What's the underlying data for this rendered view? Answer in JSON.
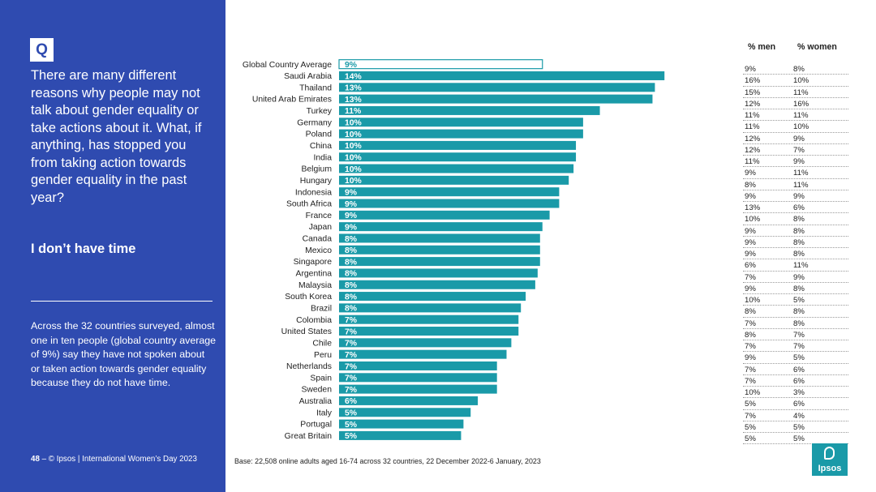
{
  "sidebar": {
    "q_label": "Q",
    "question": "There are many different reasons why people may not talk about gender equality or take actions about it.  What, if anything, has stopped you from taking action towards gender equality in the past year?",
    "answer": "I don’t have time",
    "summary": "Across the 32 countries surveyed, almost one in ten people (global country average of 9%) say they have not spoken about or taken action towards gender equality because they do not have time.",
    "page_number": "48",
    "footer_text": "– © Ipsos | International Women’s Day 2023"
  },
  "table": {
    "men_header": "% men",
    "women_header": "% women",
    "rows": [
      {
        "men": "9%",
        "women": "8%"
      },
      {
        "men": "16%",
        "women": "10%"
      },
      {
        "men": "15%",
        "women": "11%"
      },
      {
        "men": "12%",
        "women": "16%"
      },
      {
        "men": "11%",
        "women": "11%"
      },
      {
        "men": "11%",
        "women": "10%"
      },
      {
        "men": "12%",
        "women": "9%"
      },
      {
        "men": "12%",
        "women": "7%"
      },
      {
        "men": "11%",
        "women": "9%"
      },
      {
        "men": "9%",
        "women": "11%"
      },
      {
        "men": "8%",
        "women": "11%"
      },
      {
        "men": "9%",
        "women": "9%"
      },
      {
        "men": "13%",
        "women": "6%"
      },
      {
        "men": "10%",
        "women": "8%"
      },
      {
        "men": "9%",
        "women": "8%"
      },
      {
        "men": "9%",
        "women": "8%"
      },
      {
        "men": "9%",
        "women": "8%"
      },
      {
        "men": "6%",
        "women": "11%"
      },
      {
        "men": "7%",
        "women": "9%"
      },
      {
        "men": "9%",
        "women": "8%"
      },
      {
        "men": "10%",
        "women": "5%"
      },
      {
        "men": "8%",
        "women": "8%"
      },
      {
        "men": "7%",
        "women": "8%"
      },
      {
        "men": "8%",
        "women": "7%"
      },
      {
        "men": "7%",
        "women": "7%"
      },
      {
        "men": "9%",
        "women": "5%"
      },
      {
        "men": "7%",
        "women": "6%"
      },
      {
        "men": "7%",
        "women": "6%"
      },
      {
        "men": "10%",
        "women": "3%"
      },
      {
        "men": "5%",
        "women": "6%"
      },
      {
        "men": "7%",
        "women": "4%"
      },
      {
        "men": "5%",
        "women": "5%"
      },
      {
        "men": "5%",
        "women": "5%"
      }
    ]
  },
  "base_note": "Base: 22,508 online adults aged 16-74 across 32 countries, 22 December 2022-6 January, 2023",
  "logo_text": "Ipsos",
  "colors": {
    "panel": "#2f4bb0",
    "bar": "#1a9aa8",
    "average_bar_fill": "#ffffff"
  },
  "chart_data": {
    "type": "bar",
    "orientation": "horizontal",
    "title": "",
    "xlabel": "",
    "ylabel": "",
    "categories": [
      "Global Country Average",
      "Saudi Arabia",
      "Thailand",
      "United Arab Emirates",
      "Turkey",
      "Germany",
      "Poland",
      "China",
      "India",
      "Belgium",
      "Hungary",
      "Indonesia",
      "South Africa",
      "France",
      "Japan",
      "Canada",
      "Mexico",
      "Singapore",
      "Argentina",
      "Malaysia",
      "South Korea",
      "Brazil",
      "Colombia",
      "United States",
      "Chile",
      "Peru",
      "Netherlands",
      "Spain",
      "Sweden",
      "Australia",
      "Italy",
      "Portugal",
      "Great Britain"
    ],
    "values": [
      8.5,
      13.6,
      13.2,
      13.1,
      10.9,
      10.2,
      10.2,
      9.9,
      9.9,
      9.8,
      9.6,
      9.2,
      9.2,
      8.8,
      8.5,
      8.4,
      8.4,
      8.4,
      8.3,
      8.2,
      7.8,
      7.6,
      7.5,
      7.5,
      7.2,
      7.0,
      6.6,
      6.6,
      6.6,
      5.8,
      5.5,
      5.2,
      5.1
    ],
    "labels": [
      "9%",
      "14%",
      "13%",
      "13%",
      "11%",
      "10%",
      "10%",
      "10%",
      "10%",
      "10%",
      "10%",
      "9%",
      "9%",
      "9%",
      "9%",
      "8%",
      "8%",
      "8%",
      "8%",
      "8%",
      "8%",
      "8%",
      "7%",
      "7%",
      "7%",
      "7%",
      "7%",
      "7%",
      "7%",
      "6%",
      "5%",
      "5%",
      "5%"
    ],
    "xlim": [
      0,
      14
    ],
    "grid": false,
    "legend": "none"
  }
}
